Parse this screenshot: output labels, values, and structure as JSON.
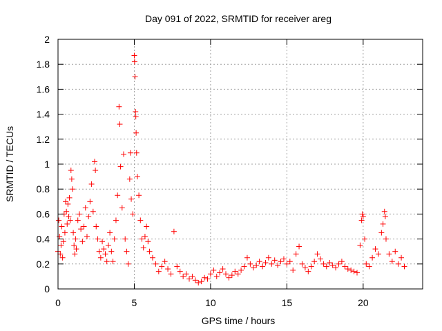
{
  "chart_data": {
    "type": "scatter",
    "title": "Day 091 of 2022, SRMTID for receiver areg",
    "xlabel": "GPS time / hours",
    "ylabel": "SRMTID / TECUs",
    "xlim": [
      0,
      23.9
    ],
    "ylim": [
      0,
      2
    ],
    "x_ticks": [
      0,
      5,
      10,
      15,
      20
    ],
    "y_ticks": [
      0,
      0.2,
      0.4,
      0.6,
      0.8,
      1,
      1.2,
      1.4,
      1.6,
      1.8,
      2
    ],
    "grid": true,
    "marker": "+",
    "series": [
      {
        "name": "SRMTID",
        "color": "#ff0000",
        "points": [
          [
            0.0,
            0.3
          ],
          [
            0.05,
            0.55
          ],
          [
            0.1,
            0.42
          ],
          [
            0.15,
            0.28
          ],
          [
            0.2,
            0.35
          ],
          [
            0.25,
            0.5
          ],
          [
            0.3,
            0.25
          ],
          [
            0.35,
            0.38
          ],
          [
            0.4,
            0.6
          ],
          [
            0.45,
            0.45
          ],
          [
            0.5,
            0.7
          ],
          [
            0.55,
            0.62
          ],
          [
            0.6,
            0.52
          ],
          [
            0.65,
            0.68
          ],
          [
            0.7,
            0.58
          ],
          [
            0.75,
            0.73
          ],
          [
            0.8,
            0.55
          ],
          [
            0.85,
            0.95
          ],
          [
            0.9,
            0.88
          ],
          [
            0.95,
            0.8
          ],
          [
            1.0,
            0.45
          ],
          [
            1.05,
            0.35
          ],
          [
            1.1,
            0.28
          ],
          [
            1.15,
            0.4
          ],
          [
            1.2,
            0.32
          ],
          [
            1.3,
            0.55
          ],
          [
            1.4,
            0.6
          ],
          [
            1.5,
            0.48
          ],
          [
            1.6,
            0.38
          ],
          [
            1.7,
            0.5
          ],
          [
            1.8,
            0.65
          ],
          [
            1.9,
            0.42
          ],
          [
            2.0,
            0.58
          ],
          [
            2.1,
            0.7
          ],
          [
            2.2,
            0.84
          ],
          [
            2.3,
            0.62
          ],
          [
            2.4,
            1.02
          ],
          [
            2.45,
            0.95
          ],
          [
            2.5,
            0.5
          ],
          [
            2.6,
            0.4
          ],
          [
            2.7,
            0.3
          ],
          [
            2.8,
            0.25
          ],
          [
            2.9,
            0.38
          ],
          [
            3.0,
            0.32
          ],
          [
            3.1,
            0.28
          ],
          [
            3.2,
            0.22
          ],
          [
            3.3,
            0.35
          ],
          [
            3.4,
            0.45
          ],
          [
            3.5,
            0.3
          ],
          [
            3.6,
            0.22
          ],
          [
            3.7,
            0.4
          ],
          [
            3.8,
            0.55
          ],
          [
            3.9,
            0.75
          ],
          [
            4.0,
            1.46
          ],
          [
            4.05,
            1.32
          ],
          [
            4.1,
            0.98
          ],
          [
            4.2,
            0.65
          ],
          [
            4.3,
            1.08
          ],
          [
            4.4,
            0.4
          ],
          [
            4.5,
            0.3
          ],
          [
            4.6,
            0.2
          ],
          [
            4.7,
            0.88
          ],
          [
            4.75,
            1.09
          ],
          [
            4.8,
            0.72
          ],
          [
            4.9,
            0.6
          ],
          [
            5.0,
            1.87
          ],
          [
            5.02,
            1.82
          ],
          [
            5.05,
            1.7
          ],
          [
            5.08,
            1.42
          ],
          [
            5.1,
            1.38
          ],
          [
            5.12,
            1.25
          ],
          [
            5.15,
            1.09
          ],
          [
            5.2,
            0.9
          ],
          [
            5.3,
            0.75
          ],
          [
            5.4,
            0.55
          ],
          [
            5.5,
            0.4
          ],
          [
            5.6,
            0.33
          ],
          [
            5.7,
            0.42
          ],
          [
            5.8,
            0.5
          ],
          [
            5.9,
            0.38
          ],
          [
            6.0,
            0.3
          ],
          [
            6.2,
            0.25
          ],
          [
            6.4,
            0.2
          ],
          [
            6.6,
            0.14
          ],
          [
            6.8,
            0.18
          ],
          [
            7.0,
            0.22
          ],
          [
            7.2,
            0.16
          ],
          [
            7.4,
            0.12
          ],
          [
            7.6,
            0.46
          ],
          [
            7.8,
            0.18
          ],
          [
            8.0,
            0.14
          ],
          [
            8.2,
            0.1
          ],
          [
            8.4,
            0.12
          ],
          [
            8.6,
            0.08
          ],
          [
            8.8,
            0.1
          ],
          [
            9.0,
            0.07
          ],
          [
            9.2,
            0.05
          ],
          [
            9.4,
            0.06
          ],
          [
            9.6,
            0.09
          ],
          [
            9.8,
            0.08
          ],
          [
            10.0,
            0.12
          ],
          [
            10.2,
            0.15
          ],
          [
            10.4,
            0.1
          ],
          [
            10.6,
            0.13
          ],
          [
            10.8,
            0.16
          ],
          [
            11.0,
            0.12
          ],
          [
            11.2,
            0.09
          ],
          [
            11.4,
            0.11
          ],
          [
            11.6,
            0.14
          ],
          [
            11.8,
            0.12
          ],
          [
            12.0,
            0.15
          ],
          [
            12.2,
            0.18
          ],
          [
            12.4,
            0.25
          ],
          [
            12.6,
            0.2
          ],
          [
            12.8,
            0.17
          ],
          [
            13.0,
            0.19
          ],
          [
            13.2,
            0.22
          ],
          [
            13.4,
            0.18
          ],
          [
            13.6,
            0.21
          ],
          [
            13.8,
            0.25
          ],
          [
            14.0,
            0.2
          ],
          [
            14.2,
            0.23
          ],
          [
            14.4,
            0.19
          ],
          [
            14.6,
            0.22
          ],
          [
            14.8,
            0.24
          ],
          [
            15.0,
            0.2
          ],
          [
            15.2,
            0.22
          ],
          [
            15.4,
            0.15
          ],
          [
            15.6,
            0.28
          ],
          [
            15.8,
            0.34
          ],
          [
            16.0,
            0.2
          ],
          [
            16.2,
            0.17
          ],
          [
            16.4,
            0.14
          ],
          [
            16.6,
            0.18
          ],
          [
            16.8,
            0.22
          ],
          [
            17.0,
            0.28
          ],
          [
            17.2,
            0.24
          ],
          [
            17.4,
            0.2
          ],
          [
            17.6,
            0.18
          ],
          [
            17.8,
            0.21
          ],
          [
            18.0,
            0.19
          ],
          [
            18.2,
            0.17
          ],
          [
            18.4,
            0.2
          ],
          [
            18.6,
            0.22
          ],
          [
            18.8,
            0.18
          ],
          [
            19.0,
            0.16
          ],
          [
            19.2,
            0.15
          ],
          [
            19.4,
            0.14
          ],
          [
            19.6,
            0.13
          ],
          [
            19.8,
            0.35
          ],
          [
            19.9,
            0.55
          ],
          [
            19.95,
            0.6
          ],
          [
            20.0,
            0.58
          ],
          [
            20.1,
            0.4
          ],
          [
            20.2,
            0.2
          ],
          [
            20.4,
            0.18
          ],
          [
            20.6,
            0.25
          ],
          [
            20.8,
            0.32
          ],
          [
            21.0,
            0.28
          ],
          [
            21.2,
            0.45
          ],
          [
            21.3,
            0.52
          ],
          [
            21.4,
            0.62
          ],
          [
            21.45,
            0.58
          ],
          [
            21.5,
            0.4
          ],
          [
            21.7,
            0.28
          ],
          [
            21.9,
            0.22
          ],
          [
            22.1,
            0.3
          ],
          [
            22.3,
            0.2
          ],
          [
            22.5,
            0.25
          ],
          [
            22.7,
            0.18
          ]
        ]
      }
    ]
  }
}
